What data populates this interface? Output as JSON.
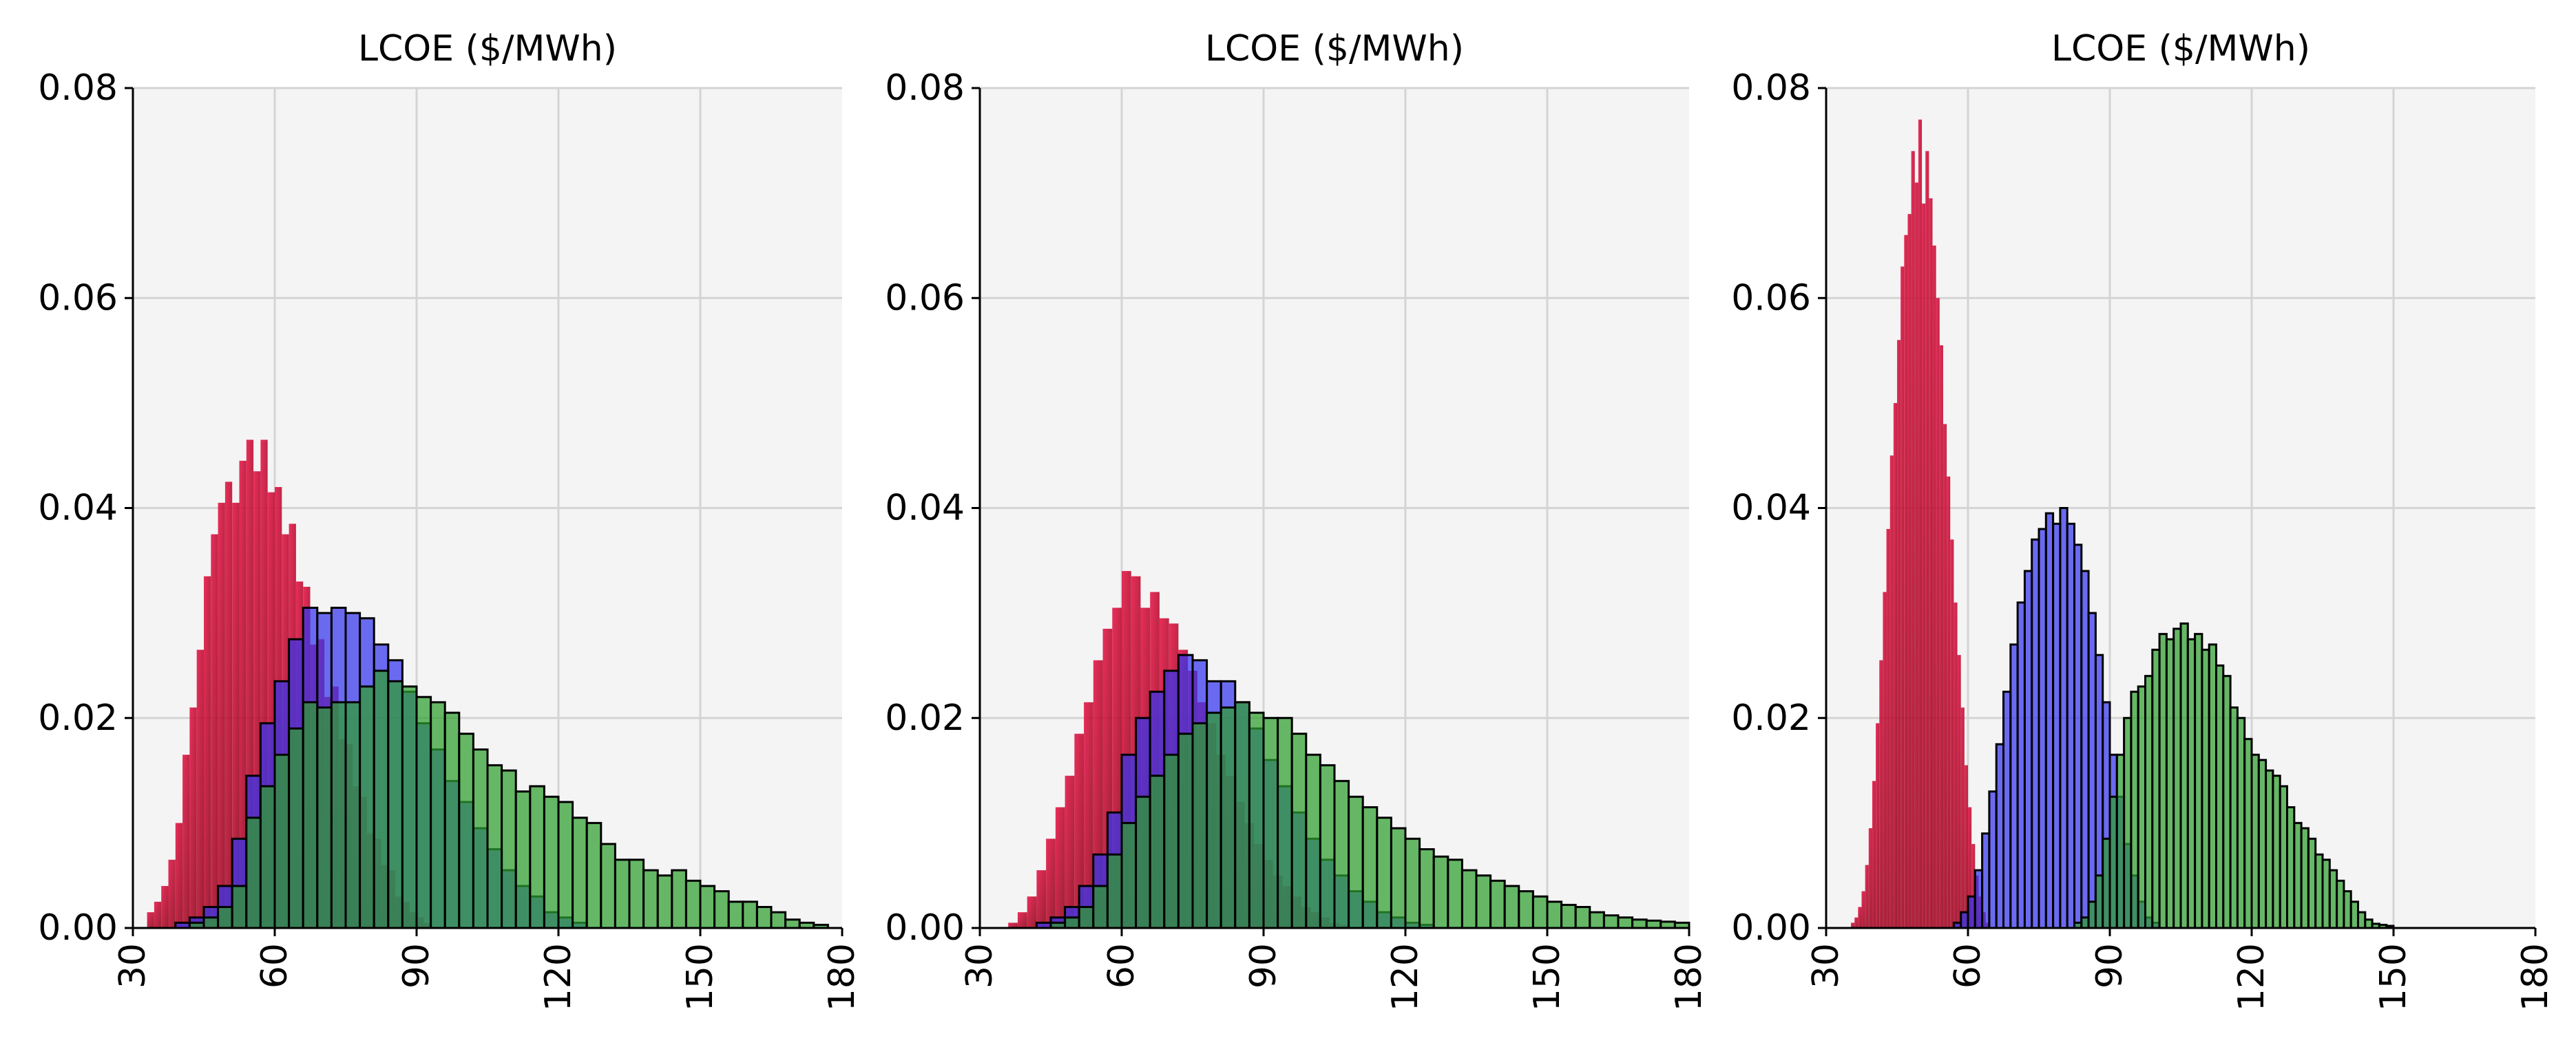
{
  "colors": {
    "background": "#ffffff",
    "plot_background": "#f4f4f4",
    "grid": "#d4d4d4",
    "axis": "#000000",
    "red": "#dc143c",
    "blue": "#3535f0",
    "green": "#2ea02e"
  },
  "chart_data": [
    {
      "type": "bar",
      "subtype": "overlapping histograms",
      "title": "LCOE ($/MWh)",
      "xlim": [
        30,
        180
      ],
      "ylim": [
        0,
        0.08
      ],
      "xticks": [
        "30",
        "60",
        "90",
        "120",
        "150",
        "180"
      ],
      "yticks": [
        "0.00",
        "0.02",
        "0.04",
        "0.06",
        "0.08"
      ],
      "grid": true,
      "series": [
        {
          "color": "red",
          "bin_width": 1.5,
          "bin_start": 30,
          "values": [
            0.0,
            0.0,
            0.0015,
            0.0025,
            0.004,
            0.0065,
            0.01,
            0.0165,
            0.021,
            0.0265,
            0.0335,
            0.0375,
            0.0405,
            0.0425,
            0.0405,
            0.0445,
            0.0465,
            0.0435,
            0.0465,
            0.0415,
            0.042,
            0.0375,
            0.0385,
            0.033,
            0.0325,
            0.027,
            0.0275,
            0.022,
            0.023,
            0.018,
            0.0175,
            0.0135,
            0.0125,
            0.009,
            0.0085,
            0.006,
            0.0055,
            0.003,
            0.0025,
            0.0015,
            0.001,
            0.0005
          ]
        },
        {
          "color": "blue",
          "bin_width": 3,
          "bin_start": 30,
          "values": [
            0.0,
            0.0,
            0.0,
            0.0005,
            0.001,
            0.002,
            0.004,
            0.0085,
            0.0145,
            0.0195,
            0.0235,
            0.0275,
            0.0305,
            0.03,
            0.0305,
            0.03,
            0.0295,
            0.027,
            0.0255,
            0.0225,
            0.0195,
            0.017,
            0.014,
            0.012,
            0.0095,
            0.0075,
            0.0055,
            0.004,
            0.003,
            0.0015,
            0.001,
            0.0005
          ]
        },
        {
          "color": "green",
          "bin_width": 3,
          "bin_start": 30,
          "values": [
            0.0,
            0.0,
            0.0,
            0.0,
            0.0005,
            0.001,
            0.002,
            0.004,
            0.0105,
            0.0135,
            0.0165,
            0.019,
            0.0215,
            0.021,
            0.0215,
            0.0215,
            0.023,
            0.0245,
            0.0235,
            0.023,
            0.022,
            0.0215,
            0.0205,
            0.0185,
            0.017,
            0.0155,
            0.015,
            0.013,
            0.0135,
            0.0125,
            0.012,
            0.0105,
            0.01,
            0.008,
            0.0065,
            0.0065,
            0.0055,
            0.005,
            0.0055,
            0.0045,
            0.004,
            0.0035,
            0.0025,
            0.0025,
            0.002,
            0.0015,
            0.0008,
            0.0005,
            0.0003,
            0.0
          ]
        }
      ]
    },
    {
      "type": "bar",
      "subtype": "overlapping histograms",
      "title": "LCOE ($/MWh)",
      "xlim": [
        30,
        180
      ],
      "ylim": [
        0,
        0.08
      ],
      "xticks": [
        "30",
        "60",
        "90",
        "120",
        "150",
        "180"
      ],
      "yticks": [
        "0.00",
        "0.02",
        "0.04",
        "0.06",
        "0.08"
      ],
      "grid": true,
      "series": [
        {
          "color": "red",
          "bin_width": 2,
          "bin_start": 30,
          "values": [
            0.0,
            0.0,
            0.0,
            0.0005,
            0.0015,
            0.003,
            0.0055,
            0.0085,
            0.0115,
            0.0145,
            0.0185,
            0.0215,
            0.0255,
            0.0285,
            0.0305,
            0.034,
            0.0335,
            0.0305,
            0.032,
            0.0295,
            0.029,
            0.0265,
            0.0245,
            0.0215,
            0.0195,
            0.0165,
            0.0145,
            0.012,
            0.01,
            0.008,
            0.0065,
            0.005,
            0.004,
            0.003,
            0.002,
            0.0015,
            0.001,
            0.0005,
            0.0003
          ]
        },
        {
          "color": "blue",
          "bin_width": 3,
          "bin_start": 30,
          "values": [
            0.0,
            0.0,
            0.0,
            0.0,
            0.0005,
            0.001,
            0.002,
            0.004,
            0.007,
            0.011,
            0.0165,
            0.02,
            0.0225,
            0.0245,
            0.026,
            0.0255,
            0.0235,
            0.0235,
            0.0215,
            0.019,
            0.016,
            0.0135,
            0.011,
            0.0085,
            0.0065,
            0.005,
            0.0035,
            0.0025,
            0.0015,
            0.001,
            0.0005,
            0.0003
          ]
        },
        {
          "color": "green",
          "bin_width": 3,
          "bin_start": 30,
          "values": [
            0.0,
            0.0,
            0.0,
            0.0,
            0.0,
            0.0005,
            0.001,
            0.002,
            0.004,
            0.007,
            0.01,
            0.0125,
            0.0145,
            0.0165,
            0.0185,
            0.0195,
            0.0205,
            0.021,
            0.0215,
            0.0205,
            0.02,
            0.02,
            0.0185,
            0.0165,
            0.0155,
            0.014,
            0.0125,
            0.0115,
            0.0105,
            0.0095,
            0.0085,
            0.0075,
            0.0068,
            0.0065,
            0.0055,
            0.005,
            0.0045,
            0.004,
            0.0035,
            0.003,
            0.0025,
            0.0022,
            0.002,
            0.0015,
            0.0012,
            0.001,
            0.0008,
            0.0007,
            0.0006,
            0.0005
          ]
        }
      ]
    },
    {
      "type": "bar",
      "subtype": "overlapping histograms",
      "title": "LCOE ($/MWh)",
      "xlim": [
        30,
        180
      ],
      "ylim": [
        0,
        0.08
      ],
      "xticks": [
        "30",
        "60",
        "90",
        "120",
        "150",
        "180"
      ],
      "yticks": [
        "0.00",
        "0.02",
        "0.04",
        "0.06",
        "0.08"
      ],
      "grid": true,
      "series": [
        {
          "color": "red",
          "bin_width": 0.75,
          "bin_start": 30,
          "values": [
            0.0,
            0.0,
            0.0,
            0.0,
            0.0,
            0.0,
            0.0,
            0.0005,
            0.001,
            0.002,
            0.0035,
            0.006,
            0.0095,
            0.014,
            0.0195,
            0.0255,
            0.032,
            0.038,
            0.045,
            0.05,
            0.056,
            0.063,
            0.066,
            0.068,
            0.074,
            0.071,
            0.077,
            0.069,
            0.074,
            0.0695,
            0.065,
            0.06,
            0.0555,
            0.048,
            0.043,
            0.037,
            0.031,
            0.026,
            0.021,
            0.0155,
            0.0115,
            0.008,
            0.005,
            0.003,
            0.0015,
            0.0005
          ]
        },
        {
          "color": "blue",
          "bin_width": 1.5,
          "bin_start": 30,
          "values": [
            0.0,
            0.0,
            0.0,
            0.0,
            0.0,
            0.0,
            0.0,
            0.0,
            0.0,
            0.0,
            0.0,
            0.0,
            0.0,
            0.0,
            0.0,
            0.0,
            0.0,
            0.0,
            0.0005,
            0.0015,
            0.003,
            0.0055,
            0.009,
            0.013,
            0.0175,
            0.0225,
            0.027,
            0.031,
            0.034,
            0.037,
            0.038,
            0.0395,
            0.0385,
            0.04,
            0.0385,
            0.0365,
            0.034,
            0.03,
            0.026,
            0.0215,
            0.0165,
            0.0125,
            0.008,
            0.005,
            0.0025,
            0.001,
            0.0005
          ]
        },
        {
          "color": "green",
          "bin_width": 1.5,
          "bin_start": 30,
          "values": [
            0.0,
            0.0,
            0.0,
            0.0,
            0.0,
            0.0,
            0.0,
            0.0,
            0.0,
            0.0,
            0.0,
            0.0,
            0.0,
            0.0,
            0.0,
            0.0,
            0.0,
            0.0,
            0.0,
            0.0,
            0.0,
            0.0,
            0.0,
            0.0,
            0.0,
            0.0,
            0.0,
            0.0,
            0.0,
            0.0,
            0.0,
            0.0,
            0.0,
            0.0,
            0.0,
            0.0005,
            0.001,
            0.0025,
            0.005,
            0.0085,
            0.0125,
            0.0165,
            0.02,
            0.0225,
            0.023,
            0.024,
            0.0265,
            0.028,
            0.0275,
            0.0285,
            0.029,
            0.0275,
            0.028,
            0.0265,
            0.027,
            0.025,
            0.024,
            0.021,
            0.02,
            0.018,
            0.0165,
            0.016,
            0.015,
            0.0145,
            0.0135,
            0.0115,
            0.01,
            0.0095,
            0.0085,
            0.007,
            0.0065,
            0.0055,
            0.0045,
            0.0035,
            0.0025,
            0.0015,
            0.0008,
            0.0004,
            0.0003,
            0.0002
          ]
        }
      ]
    }
  ]
}
